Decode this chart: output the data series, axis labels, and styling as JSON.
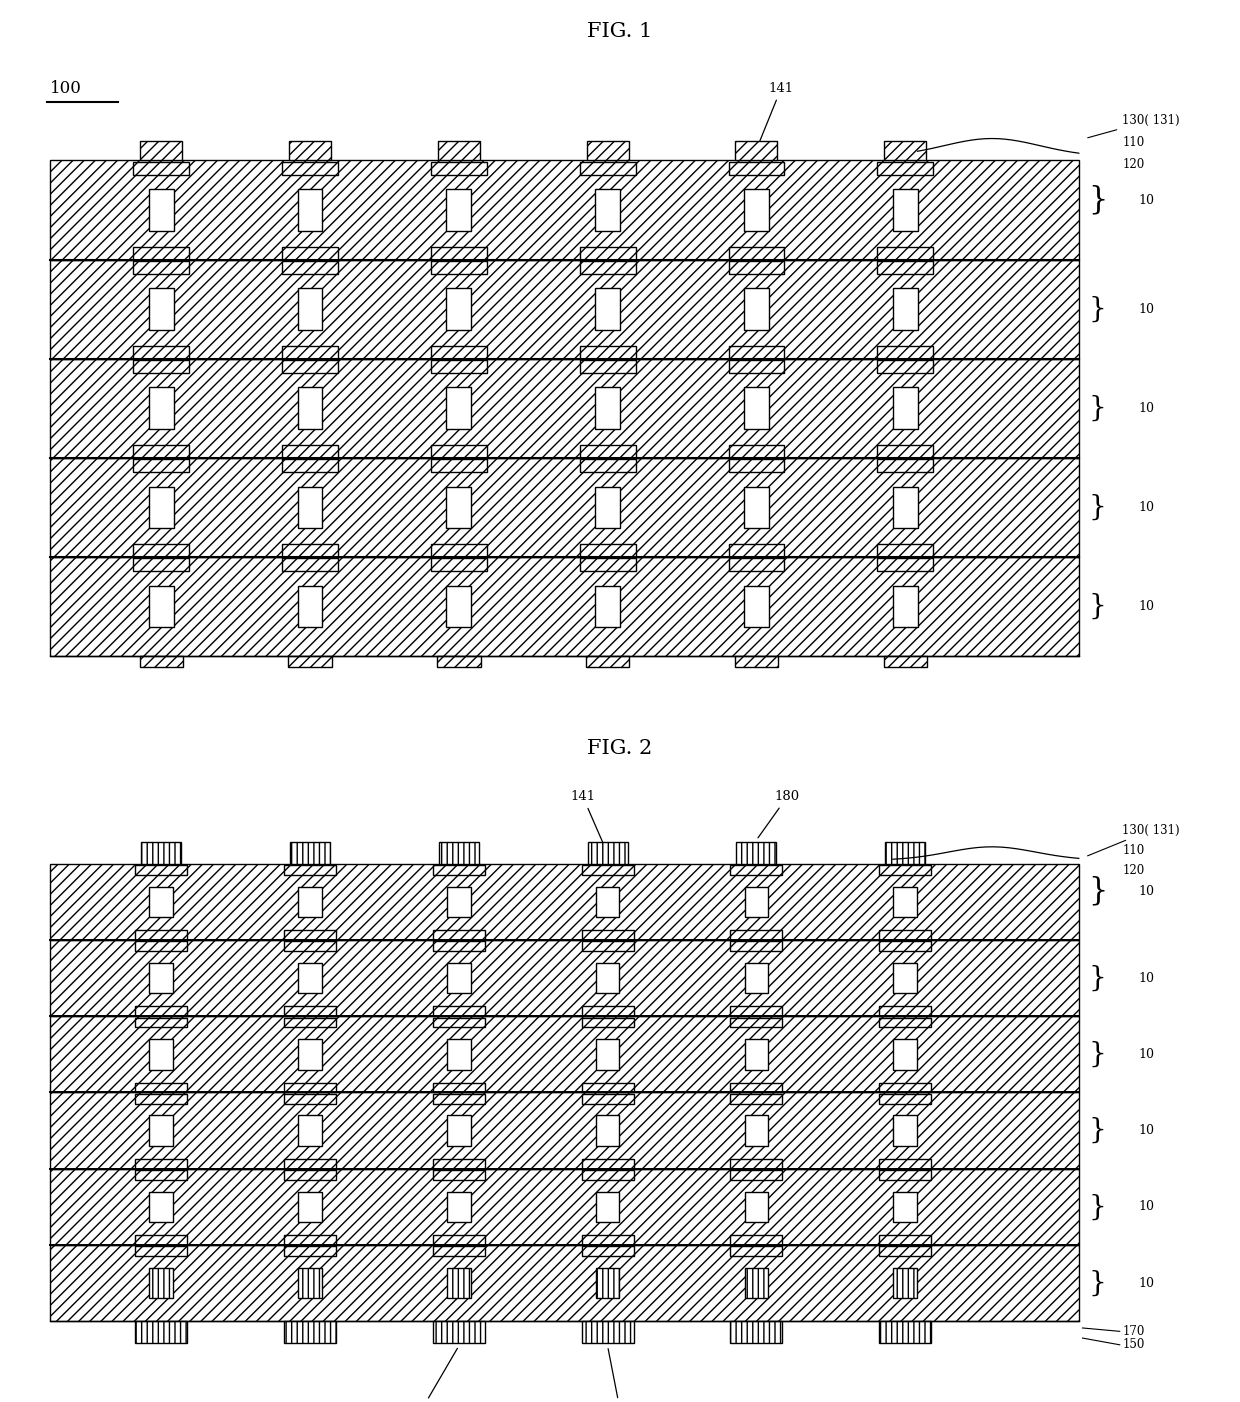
{
  "fig1_title": "FIG. 1",
  "fig2_title": "FIG. 2",
  "label_100": "100",
  "bg_color": "#ffffff",
  "line_color": "#000000"
}
